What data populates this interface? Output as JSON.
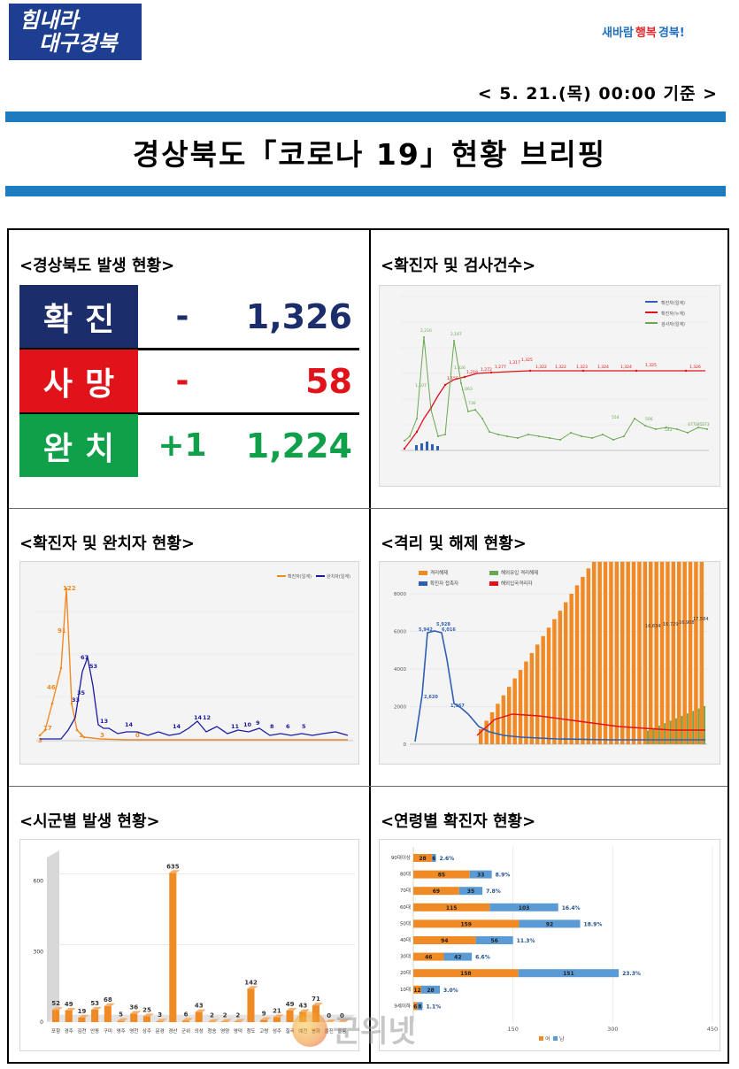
{
  "header": {
    "logo_left_line1": "힘내라",
    "logo_left_line2": "대구경북",
    "logo_right_a": "새바람",
    "logo_right_b": "행복",
    "logo_right_c": "경북!",
    "date": "< 5. 21.(목) 00:00 기준 >",
    "title": "경상북도「코로나 19」현황 브리핑"
  },
  "status": {
    "section_title": "<경상북도 발생 현황>",
    "rows": [
      {
        "label": "확진",
        "change": "-",
        "value": "1,326",
        "bg": "#1b2d6b",
        "change_color": "#1b2d6b",
        "value_color": "#1b2d6b"
      },
      {
        "label": "사망",
        "change": "-",
        "value": "58",
        "bg": "#e0121a",
        "change_color": "#e0121a",
        "value_color": "#e0121a"
      },
      {
        "label": "완치",
        "change": "+1",
        "value": "1,224",
        "bg": "#10a04a",
        "change_color": "#10a04a",
        "value_color": "#10a04a"
      }
    ]
  },
  "sections": {
    "tests": "<확진자 및 검사건수>",
    "recovered": "<확진자 및 완치자 현황>",
    "isolation": "<격리 및 해제 현황>",
    "by_city": "<시군별 발생 현황>",
    "by_age": "<연령별 확진자 현황>"
  },
  "chart_data": [
    {
      "type": "line",
      "series": [
        {
          "name": "확진자(일계)",
          "color": "#2e5fb5"
        },
        {
          "name": "확진자(누계)",
          "color": "#e0121a",
          "labels": [
            "1,150",
            "1,218",
            "1,272",
            "1,277",
            "1,317",
            "1,325",
            "1,322",
            "1,322",
            "1,323",
            "1,324",
            "1,324",
            "1,325",
            "1,326"
          ]
        },
        {
          "name": "검사자(일계)",
          "color": "#6aa84f",
          "labels": [
            "2,216",
            "2,167",
            "1,326",
            "1,107",
            "1,063",
            "736",
            "554",
            "506",
            "542",
            "477",
            "385",
            "373"
          ]
        }
      ],
      "ylim": [
        0,
        3000
      ]
    },
    {
      "type": "line",
      "series": [
        {
          "name": "확진자(일계)",
          "color": "#f08a24",
          "labels": [
            "17",
            "46",
            "91",
            "122",
            "3",
            "1",
            "3",
            "0"
          ]
        },
        {
          "name": "완치자(일계)",
          "color": "#1a1aa0",
          "labels": [
            "33",
            "35",
            "67",
            "53",
            "13",
            "14",
            "14",
            "14",
            "12",
            "11",
            "10",
            "9",
            "8",
            "6",
            "5"
          ]
        }
      ]
    },
    {
      "type": "bar",
      "series": [
        {
          "name": "격리해제",
          "color": "#f08a24",
          "labels": [
            "16,634",
            "16,729",
            "16,908",
            "17,584"
          ]
        },
        {
          "name": "해외유입 격리해제",
          "color": "#6aa84f"
        },
        {
          "name": "확진자 접촉자",
          "color": "#2e5fb5",
          "labels": [
            "5,942",
            "5,928",
            "6,016",
            "2,620",
            "1,967"
          ]
        },
        {
          "name": "해외입국격리자",
          "color": "#e0121a"
        }
      ],
      "ylim": [
        0,
        8000
      ],
      "yticks": [
        0,
        2000,
        4000,
        6000,
        8000
      ]
    },
    {
      "type": "bar",
      "categories": [
        "포항",
        "경주",
        "김천",
        "안동",
        "구미",
        "영주",
        "영천",
        "상주",
        "문경",
        "경산",
        "군위",
        "의성",
        "청송",
        "영양",
        "영덕",
        "청도",
        "고령",
        "성주",
        "칠곡",
        "예천",
        "봉화",
        "울진",
        "울릉"
      ],
      "values": [
        52,
        49,
        19,
        53,
        68,
        5,
        36,
        25,
        3,
        635,
        6,
        43,
        2,
        2,
        2,
        142,
        9,
        21,
        49,
        43,
        71,
        0,
        0
      ],
      "ylim": [
        0,
        700
      ],
      "yticks": [
        0,
        300,
        600
      ]
    },
    {
      "type": "bar",
      "categories": [
        "90대이상",
        "80대",
        "70대",
        "60대",
        "50대",
        "40대",
        "30대",
        "20대",
        "10대",
        "9세이하"
      ],
      "series": [
        {
          "name": "여",
          "color": "#f08a24",
          "values": [
            28,
            85,
            69,
            115,
            159,
            94,
            46,
            158,
            12,
            6
          ]
        },
        {
          "name": "남",
          "color": "#5b9bd5",
          "values": [
            6,
            33,
            35,
            103,
            92,
            56,
            42,
            151,
            28,
            8
          ]
        }
      ],
      "percent": [
        "2.6%",
        "8.9%",
        "7.8%",
        "16.4%",
        "18.9%",
        "11.3%",
        "6.6%",
        "23.3%",
        "3.0%",
        "1.1%"
      ],
      "xticks": [
        "150",
        "300",
        "450"
      ],
      "legend": "bottom"
    }
  ],
  "watermark": "군위넷"
}
